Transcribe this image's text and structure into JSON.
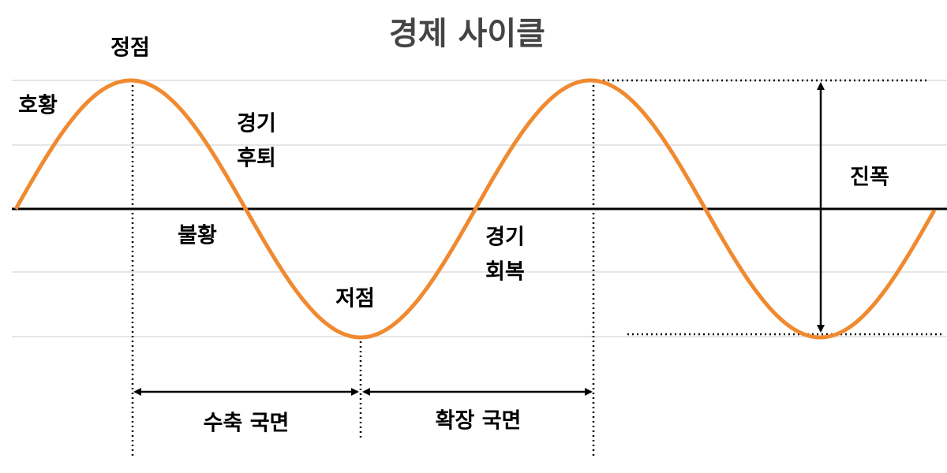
{
  "title": "경제 사이클",
  "labels": {
    "peak": "정점",
    "boom": "호황",
    "recession": [
      "경기",
      "후퇴"
    ],
    "depression": "불황",
    "trough": "저점",
    "recovery": [
      "경기",
      "회복"
    ],
    "amplitude": "진폭",
    "contraction": "수축 국면",
    "expansion": "확장 국면"
  }
}
